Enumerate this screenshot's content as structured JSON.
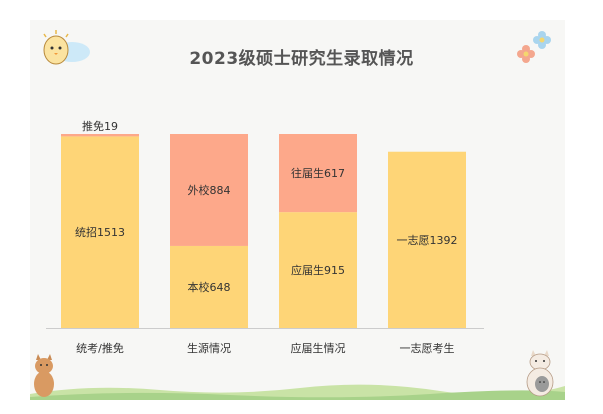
{
  "colors": {
    "background": "#f7f7f5",
    "bar_yellow": "#fed577",
    "bar_salmon": "#fda88a",
    "axis": "#cccccc",
    "text": "#333333",
    "title": "#555555"
  },
  "chart_data": {
    "type": "bar",
    "stacked": true,
    "title": "2023级硕士研究生录取情况",
    "xlabel": "",
    "ylabel": "",
    "ylim": [
      0,
      1600
    ],
    "grid": false,
    "legend": "none",
    "categories": [
      "统考/推免",
      "生源情况",
      "应届生情况",
      "一志愿考生"
    ],
    "stacks": [
      {
        "category": "统考/推免",
        "segments": [
          {
            "label": "统招1513",
            "value": 1513,
            "color": "#fed577",
            "label_pos": "inside"
          },
          {
            "label": "推免19",
            "value": 19,
            "color": "#fda88a",
            "label_pos": "above"
          }
        ]
      },
      {
        "category": "生源情况",
        "segments": [
          {
            "label": "本校648",
            "value": 648,
            "color": "#fed577",
            "label_pos": "inside"
          },
          {
            "label": "外校884",
            "value": 884,
            "color": "#fda88a",
            "label_pos": "inside"
          }
        ]
      },
      {
        "category": "应届生情况",
        "segments": [
          {
            "label": "应届生915",
            "value": 915,
            "color": "#fed577",
            "label_pos": "inside"
          },
          {
            "label": "往届生617",
            "value": 617,
            "color": "#fda88a",
            "label_pos": "inside"
          }
        ]
      },
      {
        "category": "一志愿考生",
        "segments": [
          {
            "label": "一志愿1392",
            "value": 1392,
            "color": "#fed577",
            "label_pos": "inside"
          }
        ]
      }
    ]
  }
}
